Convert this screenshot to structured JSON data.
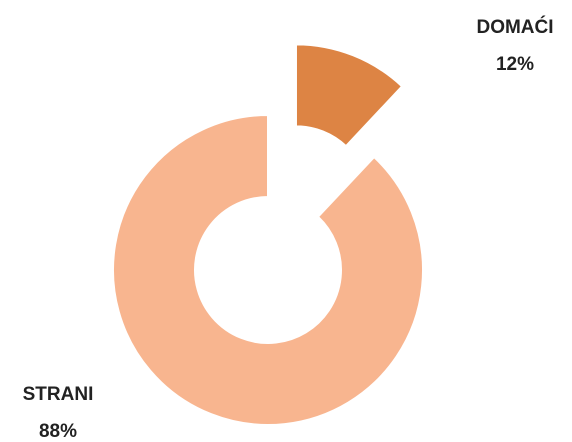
{
  "chart_data": {
    "type": "donut",
    "categories": [
      "DOMAĆI",
      "STRANI"
    ],
    "values": [
      12,
      88
    ],
    "value_labels": [
      "12%",
      "88%"
    ],
    "colors": [
      "#dd8444",
      "#f8b58f"
    ],
    "exploded": [
      true,
      false
    ]
  }
}
